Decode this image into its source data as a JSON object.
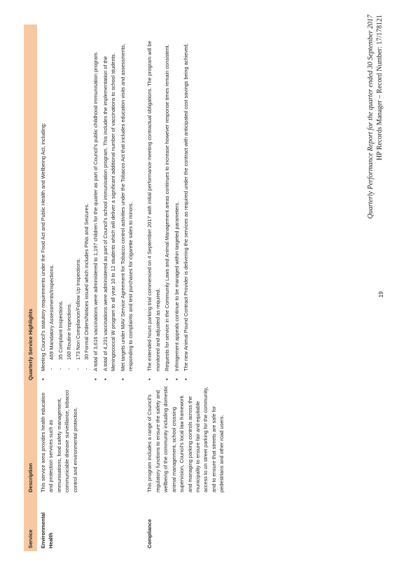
{
  "table": {
    "headers": {
      "service": "Service",
      "description": "Description",
      "highlights": "Quarterly Service Highlights"
    },
    "rows": [
      {
        "service": "Environmental Health",
        "description": "This service area provides health education and protection services such as immunisations, food safety management, communicable disease surveillance, tobacco control and environmental protection.",
        "highlights": [
          {
            "text": "Meeting Council's statutory requirements under the Food Act and Public Health and Wellbeing Act, including:",
            "sub": [
              "469 Mandatory Assessments/Inspections.",
              "35 Complaint Inspections.",
              "160 Routine Inspections.",
              "173 Non Compliance/Follow Up Inspections.",
              "30 Formal Orders/Notices issued which includes PINs and Seizures."
            ]
          },
          {
            "text": "A total of 3,616 vaccinations were administered to 1,197 children for the quarter as part of Council's public childhood immunisation program."
          },
          {
            "text": "A total of 4,231 vaccinations were administered as part of Council's school immunisation program. This includes the implementation of the Meningococcal W program to all year 10 to 12 students which will deliver a significant additional number of vaccinations to school students."
          },
          {
            "text": "Met targets under MAV Service Agreement for Tobacco control activities under the Tobacco Act that includes education visits and assessments, responding to complaints and test purchases for cigarette sales to minors."
          }
        ]
      },
      {
        "service": "Compliance",
        "description": "This program includes a range of Council's regulatory functions to ensure the safety and wellbeing of the community including domestic animal management, school crossing supervision, Council's local law framework and managing parking controls across the municipality to ensure fair and equitable access to on street parking for the community, and to ensure that streets are safe for pedestrians and other road users.",
        "highlights": [
          {
            "text": "The extended hours parking trial commenced on 4 September 2017 with initial performance meeting contractual obligations. The program will be monitored and adjusted as required."
          },
          {
            "text": "Requests for service in the Community Laws and Animal Management areas continues to increase however response times remain consistent."
          },
          {
            "text": "Infringement appeals continue to be managed within targeted parameters."
          },
          {
            "text": "The new Animal Pound Contract Provider is delivering the services as required under the contract with anticipated cost savings being achieved."
          }
        ]
      }
    ]
  },
  "page_number": "19",
  "footer": {
    "title": "Quarterly Performance Report for the quarter ended 30 September 2017",
    "record": "HP Records Manager – Record Number: 17/178121"
  }
}
